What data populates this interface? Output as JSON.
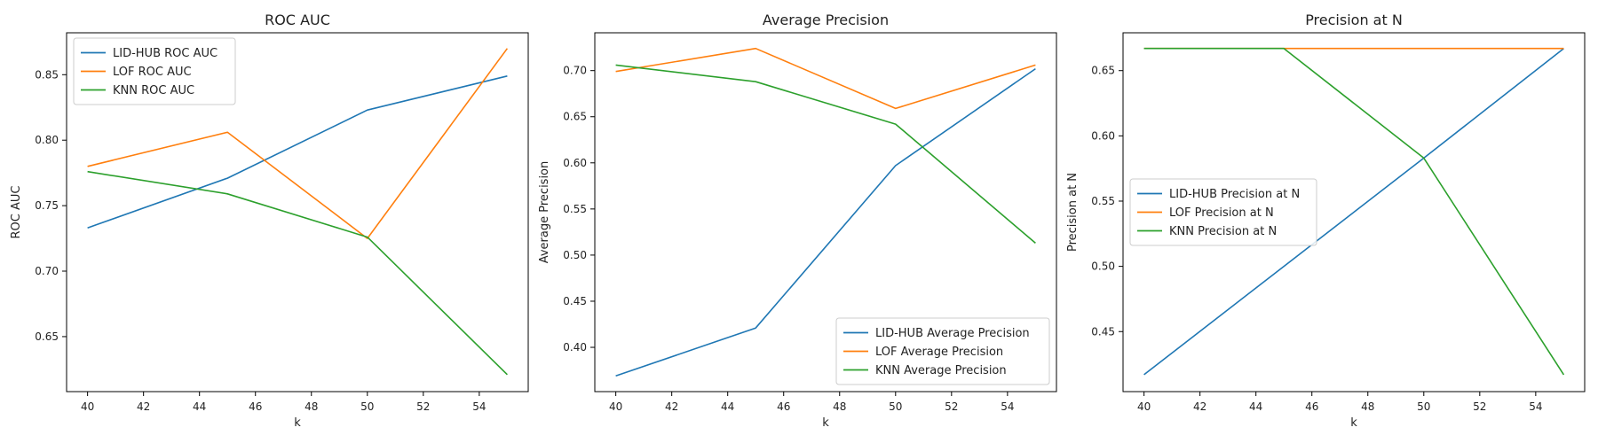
{
  "chart_data": [
    {
      "type": "line",
      "title": "ROC AUC",
      "xlabel": "k",
      "ylabel": "ROC AUC",
      "x": [
        40,
        45,
        50,
        55
      ],
      "xlim": [
        39.25,
        55.75
      ],
      "ylim": [
        0.608,
        0.882
      ],
      "xticks": [
        40,
        42,
        44,
        46,
        48,
        50,
        52,
        54
      ],
      "yticks": [
        0.65,
        0.7,
        0.75,
        0.8,
        0.85
      ],
      "ytick_decimals": 2,
      "legend": "upper-left",
      "grid": false,
      "series": [
        {
          "name": "LID-HUB ROC AUC",
          "color": "#1f77b4",
          "values": [
            0.733,
            0.771,
            0.823,
            0.849
          ]
        },
        {
          "name": "LOF ROC AUC",
          "color": "#ff7f0e",
          "values": [
            0.78,
            0.806,
            0.725,
            0.87
          ]
        },
        {
          "name": "KNN ROC AUC",
          "color": "#2ca02c",
          "values": [
            0.776,
            0.759,
            0.726,
            0.621
          ]
        }
      ]
    },
    {
      "type": "line",
      "title": "Average Precision",
      "xlabel": "k",
      "ylabel": "Average Precision",
      "x": [
        40,
        45,
        50,
        55
      ],
      "xlim": [
        39.25,
        55.75
      ],
      "ylim": [
        0.352,
        0.741
      ],
      "xticks": [
        40,
        42,
        44,
        46,
        48,
        50,
        52,
        54
      ],
      "yticks": [
        0.4,
        0.45,
        0.5,
        0.55,
        0.6,
        0.65,
        0.7
      ],
      "ytick_decimals": 2,
      "legend": "lower-right",
      "grid": false,
      "series": [
        {
          "name": "LID-HUB Average Precision",
          "color": "#1f77b4",
          "values": [
            0.369,
            0.421,
            0.597,
            0.702
          ]
        },
        {
          "name": "LOF Average Precision",
          "color": "#ff7f0e",
          "values": [
            0.699,
            0.724,
            0.659,
            0.706
          ]
        },
        {
          "name": "KNN Average Precision",
          "color": "#2ca02c",
          "values": [
            0.706,
            0.688,
            0.642,
            0.513
          ]
        }
      ]
    },
    {
      "type": "line",
      "title": "Precision at N",
      "xlabel": "k",
      "ylabel": "Precision at N",
      "x": [
        40,
        45,
        50,
        55
      ],
      "xlim": [
        39.25,
        55.75
      ],
      "ylim": [
        0.404,
        0.679
      ],
      "xticks": [
        40,
        42,
        44,
        46,
        48,
        50,
        52,
        54
      ],
      "yticks": [
        0.45,
        0.5,
        0.55,
        0.6,
        0.65
      ],
      "ytick_decimals": 2,
      "legend": "center-left",
      "grid": false,
      "series": [
        {
          "name": "LID-HUB Precision at N",
          "color": "#1f77b4",
          "values": [
            0.417,
            0.5,
            0.583,
            0.667
          ]
        },
        {
          "name": "LOF Precision at N",
          "color": "#ff7f0e",
          "values": [
            0.667,
            0.667,
            0.667,
            0.667
          ]
        },
        {
          "name": "KNN Precision at N",
          "color": "#2ca02c",
          "values": [
            0.667,
            0.667,
            0.583,
            0.417
          ]
        }
      ]
    }
  ]
}
